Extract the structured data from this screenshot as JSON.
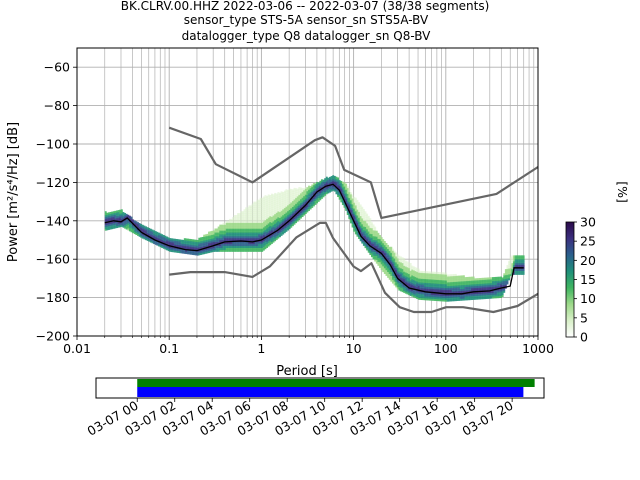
{
  "title_lines": [
    "BK.CLRV.00.HHZ   2022-03-06 -- 2022-03-07  (38/38 segments)",
    "sensor_type STS-5A sensor_sn STS5A-BV",
    "datalogger_type Q8 datalogger_sn Q8-BV"
  ],
  "chart_data": {
    "type": "heatmap",
    "title": "BK.CLRV.00.HHZ   2022-03-06 -- 2022-03-07  (38/38 segments)",
    "xlabel": "Period [s]",
    "ylabel": "Power [m²/s⁴/Hz] [dB]",
    "xscale": "log",
    "xlim": [
      0.01,
      1000
    ],
    "ylim": [
      -200,
      -50
    ],
    "grid": true,
    "x_ticks": [
      0.01,
      0.1,
      1,
      10,
      100,
      1000
    ],
    "x_tick_labels": [
      "0.01",
      "0.1",
      "1",
      "10",
      "100",
      "1000"
    ],
    "y_ticks": [
      -200,
      -180,
      -160,
      -140,
      -120,
      -100,
      -80,
      -60
    ],
    "y_tick_labels": [
      "−200",
      "−180",
      "−160",
      "−140",
      "−120",
      "−100",
      "−80",
      "−60"
    ],
    "colorbar": {
      "label": "[%]",
      "range": [
        0,
        30
      ],
      "ticks": [
        0,
        5,
        10,
        15,
        20,
        25,
        30
      ],
      "tick_labels": [
        "0",
        "5",
        "10",
        "15",
        "20",
        "25",
        "30"
      ],
      "colormap": [
        "#ffffff",
        "#d9f0c9",
        "#9dd98a",
        "#3fb561",
        "#1f8f7a",
        "#2b5f8c",
        "#3b2f7e",
        "#2a0a4a"
      ]
    },
    "noise_models": [
      {
        "name": "high",
        "color": "#666666",
        "x": [
          0.1,
          0.22,
          0.32,
          0.8,
          3.8,
          4.6,
          6.3,
          7.9,
          15.4,
          20,
          354.8,
          1000
        ],
        "y": [
          -91.5,
          -97.4,
          -110.5,
          -120,
          -98,
          -96.5,
          -101,
          -113.5,
          -120,
          -138.5,
          -126,
          -112
        ]
      },
      {
        "name": "low",
        "color": "#666666",
        "x": [
          0.1,
          0.17,
          0.4,
          0.8,
          1.24,
          2.4,
          4.3,
          5,
          6,
          10,
          12,
          15.6,
          21.9,
          31.6,
          45,
          70,
          101,
          154,
          328,
          600,
          1000
        ],
        "y": [
          -168,
          -166.7,
          -166.7,
          -169.2,
          -163.7,
          -148.6,
          -141.1,
          -141.1,
          -149,
          -163.8,
          -166.2,
          -162.1,
          -177.5,
          -185,
          -187.5,
          -187.5,
          -185,
          -185,
          -187.5,
          -184.4,
          -178
        ]
      }
    ],
    "mode_curve": {
      "color": "#000000",
      "x": [
        0.02,
        0.025,
        0.03,
        0.035,
        0.05,
        0.07,
        0.1,
        0.15,
        0.2,
        0.3,
        0.4,
        0.6,
        0.8,
        1.0,
        1.5,
        2,
        3,
        4,
        5,
        6,
        7,
        8,
        10,
        12,
        15,
        20,
        25,
        30,
        40,
        60,
        100,
        150,
        200,
        300,
        400,
        500,
        550,
        600,
        700
      ],
      "y": [
        -141,
        -140,
        -140.5,
        -138.5,
        -146,
        -150,
        -153,
        -155,
        -155.5,
        -153,
        -151,
        -150.5,
        -151,
        -150,
        -145,
        -140,
        -132,
        -125,
        -122,
        -121,
        -124,
        -130,
        -140,
        -148,
        -153,
        -157,
        -163,
        -170,
        -175,
        -177,
        -178,
        -178,
        -177,
        -176.5,
        -175,
        -174,
        -164.5,
        -164.5,
        -164.5
      ]
    },
    "density_band": {
      "x": [
        0.02,
        0.03,
        0.05,
        0.1,
        0.2,
        0.3,
        0.5,
        1.0,
        2,
        3,
        5,
        6,
        8,
        10,
        15,
        20,
        30,
        50,
        100,
        200,
        400,
        500,
        700
      ],
      "y_low": [
        -145,
        -143,
        -149,
        -156,
        -158,
        -156,
        -156,
        -156,
        -144,
        -136,
        -126,
        -124,
        -134,
        -146,
        -158,
        -166,
        -176,
        -181,
        -182,
        -181,
        -180,
        -168,
        -168
      ],
      "y_high": [
        -136,
        -135,
        -143,
        -150,
        -150,
        -145,
        -138,
        -128,
        -124,
        -123,
        -118,
        -117,
        -121,
        -128,
        -140,
        -150,
        -158,
        -166,
        -168,
        -170,
        -170,
        -159,
        -159
      ]
    }
  },
  "time_bar": {
    "tick_labels": [
      "03-07 00",
      "03-07 02",
      "03-07 04",
      "03-07 06",
      "03-07 08",
      "03-07 10",
      "03-07 12",
      "03-07 14",
      "03-07 16",
      "03-07 18",
      "03-07 20"
    ],
    "tick_hours": [
      0,
      2,
      4,
      6,
      8,
      10,
      12,
      14,
      16,
      18,
      20
    ],
    "range_hours": [
      -2.2,
      21.7
    ],
    "data_bar": {
      "start_hour": 0,
      "end_hour": 21.2,
      "color": "#008000",
      "fraction": 1.0
    },
    "used_bar": {
      "start_hour": 0,
      "end_hour": 20.6,
      "color": "#0000ff",
      "fraction": 1.0
    }
  }
}
